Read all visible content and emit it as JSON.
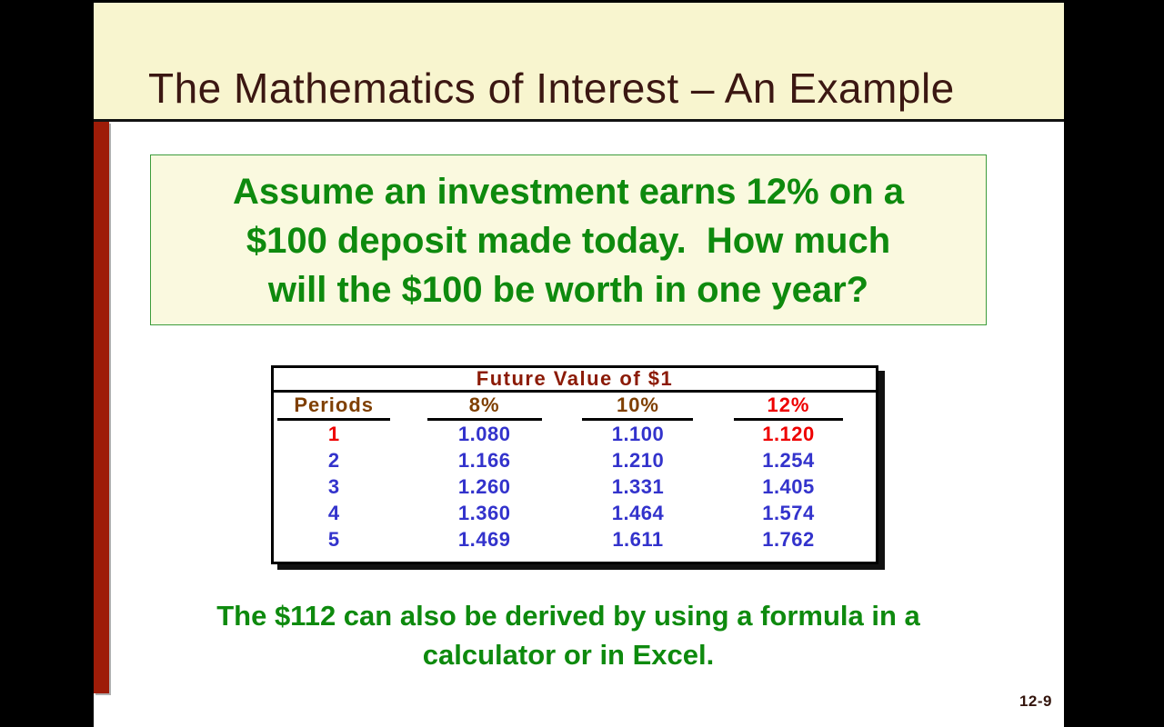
{
  "slide": {
    "title": "The Mathematics of Interest – An Example",
    "question_box": {
      "line1": "Assume an investment earns 12% on a",
      "line2": "$100 deposit made today.  How much",
      "line3": "will the $100 be worth in one year?"
    },
    "table": {
      "title": "Future Value of $1",
      "columns": [
        "Periods",
        "8%",
        "10%",
        "12%"
      ],
      "rows": [
        {
          "period": "1",
          "v8": "1.080",
          "v10": "1.100",
          "v12": "1.120"
        },
        {
          "period": "2",
          "v8": "1.166",
          "v10": "1.210",
          "v12": "1.254"
        },
        {
          "period": "3",
          "v8": "1.260",
          "v10": "1.331",
          "v12": "1.405"
        },
        {
          "period": "4",
          "v8": "1.360",
          "v10": "1.464",
          "v12": "1.574"
        },
        {
          "period": "5",
          "v8": "1.469",
          "v10": "1.611",
          "v12": "1.762"
        }
      ]
    },
    "bottom_text": {
      "line1": "The $112 can also be derived by using a formula in a",
      "line2": "calculator or in Excel."
    },
    "page_number": "12-9"
  },
  "colors": {
    "title_text": "#3B1712",
    "band_bg": "#F8F5CF",
    "accent_bar": "#9E1C08",
    "box_bg": "#FAF9DF",
    "box_border": "#3C9C3C",
    "green_text": "#0E8A0E",
    "table_title_red": "#8B1A05",
    "header_brown": "#7F3F00",
    "highlight_red": "#EE0000",
    "value_blue": "#3333CC"
  }
}
